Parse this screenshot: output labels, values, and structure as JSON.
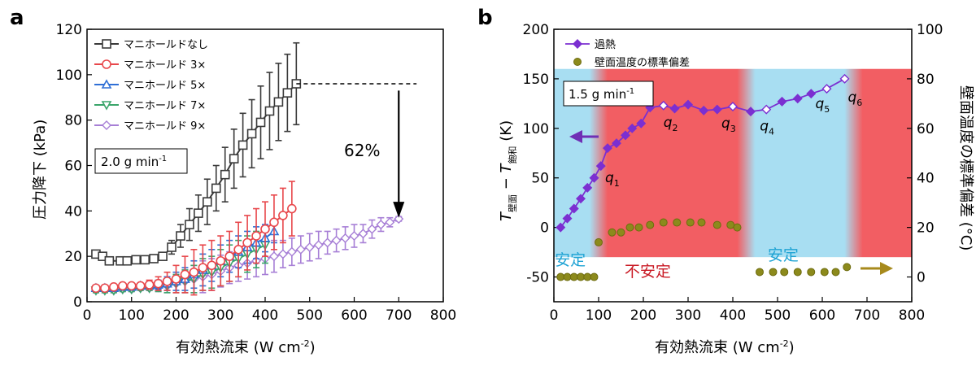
{
  "chart_data": [
    {
      "type": "line",
      "panel_label": "a",
      "xlabel": "有効熱流束 (W cm",
      "xlabel_sup": "-2",
      "xlabel_end": ")",
      "ylabel": "圧力降下 (kPa)",
      "xlim": [
        0,
        800
      ],
      "ylim": [
        0,
        120
      ],
      "xticks": [
        0,
        100,
        200,
        300,
        400,
        500,
        600,
        700,
        800
      ],
      "yticks": [
        0,
        20,
        40,
        60,
        80,
        100,
        120
      ],
      "condition": "2.0 g min",
      "condition_sup": "-1",
      "reduction_label": "62%",
      "series": [
        {
          "name": "マニホールドなし",
          "color": "#3a3a3a",
          "marker": "square",
          "x": [
            20,
            35,
            50,
            75,
            90,
            110,
            130,
            150,
            170,
            190,
            210,
            230,
            250,
            270,
            290,
            310,
            330,
            350,
            370,
            390,
            410,
            430,
            450,
            470
          ],
          "y": [
            21,
            20,
            18,
            18,
            18,
            18.5,
            18.5,
            19,
            20,
            24,
            29,
            34,
            39,
            44,
            50,
            56,
            63,
            69,
            74,
            79,
            84,
            88,
            92,
            96
          ],
          "err": [
            1,
            1,
            1,
            1,
            1,
            1,
            1,
            1,
            1,
            3,
            5,
            7,
            8,
            10,
            10,
            12,
            13,
            14,
            15,
            16,
            17,
            17,
            17,
            18
          ]
        },
        {
          "name": "マニホールド 3×",
          "color": "#e8474b",
          "marker": "circle",
          "x": [
            20,
            40,
            60,
            80,
            100,
            120,
            140,
            160,
            180,
            200,
            220,
            240,
            260,
            280,
            300,
            320,
            340,
            360,
            380,
            400,
            420,
            440,
            460
          ],
          "y": [
            6,
            6,
            6.5,
            7,
            7,
            7,
            7.5,
            8,
            9,
            10,
            12,
            13,
            15,
            16,
            18,
            20,
            23,
            26,
            29,
            32,
            35,
            38,
            41
          ],
          "err": [
            1,
            1,
            1,
            1,
            1,
            1,
            2,
            3,
            4,
            6,
            8,
            10,
            10,
            11,
            11,
            11,
            12,
            12,
            12,
            12,
            12,
            12,
            12
          ]
        },
        {
          "name": "マニホールド 5×",
          "color": "#2f6fd6",
          "marker": "triangle-up",
          "x": [
            20,
            40,
            60,
            80,
            100,
            120,
            140,
            160,
            180,
            200,
            220,
            240,
            260,
            280,
            300,
            320,
            340,
            360,
            380,
            400,
            420
          ],
          "y": [
            6,
            6,
            6,
            6.5,
            6.5,
            7,
            7,
            7.5,
            8,
            9,
            10,
            12,
            14,
            16,
            18,
            20,
            22,
            24,
            26,
            28,
            31
          ],
          "err": [
            1,
            1,
            1,
            1,
            1,
            1,
            1,
            2,
            3,
            4,
            5,
            6,
            7,
            7,
            7,
            7,
            7,
            7,
            7,
            6,
            5
          ]
        },
        {
          "name": "マニホールド 7×",
          "color": "#3aa56a",
          "marker": "triangle-down",
          "x": [
            20,
            40,
            60,
            80,
            100,
            120,
            140,
            160,
            180,
            200,
            220,
            240,
            260,
            280,
            300,
            320,
            340,
            360,
            380,
            400
          ],
          "y": [
            5,
            5,
            5,
            5.5,
            5.5,
            6,
            6,
            6.5,
            7,
            8,
            9,
            10,
            12,
            13,
            15,
            17,
            19,
            21,
            23,
            25
          ],
          "err": [
            1,
            1,
            1,
            1,
            1,
            1,
            1,
            2,
            3,
            4,
            5,
            6,
            7,
            7,
            8,
            8,
            8,
            8,
            8,
            8
          ]
        },
        {
          "name": "マニホールド 9×",
          "color": "#a77fd6",
          "marker": "diamond",
          "x": [
            20,
            40,
            60,
            80,
            100,
            120,
            140,
            160,
            180,
            200,
            220,
            240,
            260,
            280,
            300,
            320,
            340,
            360,
            380,
            400,
            420,
            440,
            460,
            480,
            500,
            520,
            540,
            560,
            580,
            600,
            620,
            640,
            660,
            680,
            700
          ],
          "y": [
            5,
            5,
            5,
            5.5,
            5.5,
            6,
            6,
            6.5,
            7,
            8,
            9,
            10,
            11,
            12,
            13.5,
            15,
            16,
            17,
            18,
            19,
            20,
            21,
            22,
            23,
            24,
            25,
            26,
            27,
            28,
            29,
            30,
            32,
            34,
            35,
            36.5
          ],
          "err": [
            1,
            1,
            1,
            1,
            1,
            1,
            1,
            2,
            3,
            4,
            5,
            6,
            7,
            7,
            7,
            7,
            7,
            7,
            7,
            7,
            7,
            6,
            6,
            6,
            6,
            6,
            5,
            5,
            5,
            5,
            4,
            4,
            3,
            2,
            1
          ]
        }
      ]
    },
    {
      "type": "line",
      "panel_label": "b",
      "xlabel": "有効熱流束 (W cm",
      "xlabel_sup": "-2",
      "xlabel_end": ")",
      "ylabel_left_T": "T",
      "ylabel_left_sub1": "壁面",
      "ylabel_left_dash": " − ",
      "ylabel_left_sub2": "飽和",
      "ylabel_left_unit": " (K)",
      "ylabel_right": "壁面温度の標準偏差 (°C)",
      "xlim": [
        0,
        800
      ],
      "ylim_left": [
        -75,
        200
      ],
      "ylim_right": [
        -10,
        100
      ],
      "xticks": [
        0,
        100,
        200,
        300,
        400,
        500,
        600,
        700,
        800
      ],
      "yticks_left": [
        -50,
        0,
        50,
        100,
        150,
        200
      ],
      "yticks_right": [
        0,
        20,
        40,
        60,
        80,
        100
      ],
      "condition": "1.5 g min",
      "condition_sup": "-1",
      "series": [
        {
          "name": "過熱",
          "color": "#7b2fd1",
          "marker": "diamond",
          "axis": "left",
          "x": [
            15,
            30,
            45,
            60,
            75,
            90,
            105,
            120,
            140,
            160,
            175,
            195,
            215,
            245,
            270,
            300,
            335,
            365,
            400,
            440,
            475,
            510,
            545,
            575,
            610,
            650
          ],
          "y": [
            0,
            9,
            19,
            29,
            40,
            50,
            62,
            80,
            85,
            93,
            100,
            105,
            121,
            123,
            120,
            124,
            118,
            119,
            122,
            117,
            119,
            127,
            130,
            135,
            140,
            150
          ]
        },
        {
          "name": "壁面温度の標準偏差",
          "color": "#8c8a1c",
          "marker": "circle",
          "axis": "right",
          "x": [
            15,
            30,
            45,
            60,
            75,
            90,
            100,
            130,
            150,
            170,
            190,
            215,
            245,
            275,
            305,
            330,
            365,
            395,
            410,
            460,
            490,
            515,
            545,
            575,
            605,
            630,
            655
          ],
          "y": [
            0,
            0,
            0,
            0,
            0,
            0,
            14,
            18,
            18,
            20,
            20,
            21,
            22,
            22,
            22,
            22,
            21,
            21,
            20,
            2,
            2,
            2,
            2,
            2,
            2,
            2,
            4
          ]
        }
      ],
      "point_labels": [
        {
          "label": "q",
          "sub": "1",
          "x": 100,
          "y": 62
        },
        {
          "label": "q",
          "sub": "2",
          "x": 245,
          "y": 123
        },
        {
          "label": "q",
          "sub": "3",
          "x": 400,
          "y": 122
        },
        {
          "label": "q",
          "sub": "4",
          "x": 475,
          "y": 119
        },
        {
          "label": "q",
          "sub": "5",
          "x": 610,
          "y": 140
        },
        {
          "label": "q",
          "sub": "6",
          "x": 650,
          "y": 150
        }
      ],
      "regions": [
        {
          "label": "安定",
          "x_start": 0,
          "x_end": 100,
          "state": "stable",
          "color": "#a8def2"
        },
        {
          "label": "不安定",
          "x_start": 100,
          "x_end": 430,
          "state": "unstable",
          "color": "#f25e63"
        },
        {
          "label": "安定",
          "x_start": 430,
          "x_end": 670,
          "state": "stable",
          "color": "#a8def2"
        },
        {
          "label": "",
          "x_start": 670,
          "x_end": 800,
          "state": "unstable",
          "color": "#f25e63"
        }
      ]
    }
  ]
}
